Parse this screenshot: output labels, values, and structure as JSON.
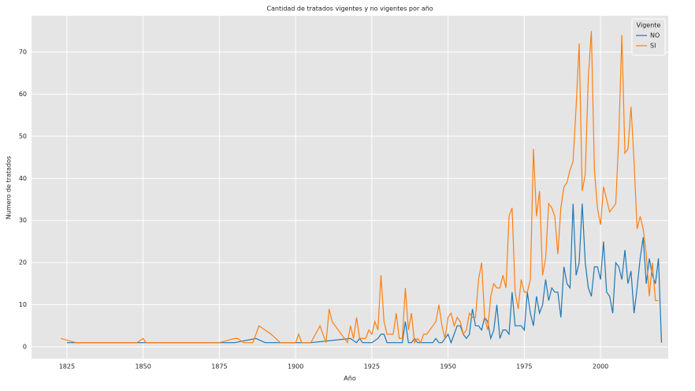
{
  "chart_data": {
    "type": "line",
    "title": "Cantidad de tratados vigentes y no vigentes por año",
    "x_label": "Año",
    "y_label": "Numero de tratados",
    "xlim": [
      1813.4,
      2022.2
    ],
    "ylim": [
      -2.8,
      78.6
    ],
    "xticks": [
      1825,
      1850,
      1875,
      1900,
      1925,
      1950,
      1975,
      2000
    ],
    "yticks": [
      0,
      10,
      20,
      30,
      40,
      50,
      60,
      70
    ],
    "grid": true,
    "legend_title": "Vigente",
    "legend_position": "upper-right",
    "series": [
      {
        "name": "NO",
        "color": "#1f77b4",
        "x": [
          1825,
          1830,
          1850,
          1880,
          1887,
          1890,
          1900,
          1905,
          1918,
          1920,
          1921,
          1922,
          1925,
          1927,
          1928,
          1929,
          1930,
          1935,
          1936,
          1937,
          1938,
          1939,
          1940,
          1945,
          1946,
          1947,
          1948,
          1950,
          1951,
          1952,
          1953,
          1954,
          1955,
          1956,
          1957,
          1958,
          1959,
          1960,
          1961,
          1962,
          1963,
          1964,
          1965,
          1966,
          1967,
          1968,
          1969,
          1970,
          1971,
          1972,
          1973,
          1974,
          1975,
          1976,
          1977,
          1978,
          1979,
          1980,
          1981,
          1982,
          1983,
          1984,
          1985,
          1986,
          1987,
          1988,
          1989,
          1990,
          1991,
          1992,
          1993,
          1994,
          1995,
          1996,
          1997,
          1998,
          1999,
          2000,
          2001,
          2002,
          2003,
          2004,
          2005,
          2006,
          2007,
          2008,
          2009,
          2010,
          2011,
          2012,
          2013,
          2014,
          2015,
          2016,
          2017,
          2018,
          2019,
          2020
        ],
        "values": [
          1,
          1,
          1,
          1,
          2,
          1,
          1,
          1,
          2,
          1,
          2,
          1,
          1,
          2,
          3,
          3,
          1,
          1,
          6,
          1,
          1,
          2,
          1,
          1,
          2,
          1,
          1,
          3,
          1,
          3,
          5,
          5,
          3,
          2,
          3,
          9,
          5,
          5,
          4,
          7,
          6,
          2,
          4,
          10,
          2,
          4,
          4,
          3,
          13,
          5,
          5,
          5,
          4,
          13,
          8,
          5,
          12,
          8,
          10,
          16,
          11,
          14,
          13,
          13,
          7,
          19,
          15,
          14,
          34,
          17,
          20,
          34,
          20,
          14,
          12,
          19,
          19,
          16,
          25,
          13,
          12,
          8,
          20,
          19,
          16,
          23,
          15,
          18,
          8,
          14,
          21,
          26,
          15,
          21,
          17,
          15,
          21,
          1
        ]
      },
      {
        "name": "SI",
        "color": "#ff7f0e",
        "x": [
          1823,
          1828,
          1848,
          1850,
          1851,
          1875,
          1880,
          1881,
          1883,
          1886,
          1888,
          1890,
          1892,
          1895,
          1900,
          1901,
          1902,
          1905,
          1908,
          1910,
          1911,
          1912,
          1915,
          1917,
          1918,
          1919,
          1920,
          1921,
          1923,
          1924,
          1925,
          1926,
          1927,
          1928,
          1929,
          1930,
          1932,
          1933,
          1934,
          1935,
          1936,
          1937,
          1938,
          1939,
          1940,
          1941,
          1942,
          1943,
          1945,
          1946,
          1947,
          1948,
          1949,
          1950,
          1951,
          1952,
          1953,
          1954,
          1955,
          1956,
          1957,
          1958,
          1959,
          1960,
          1961,
          1962,
          1963,
          1964,
          1965,
          1966,
          1967,
          1968,
          1969,
          1970,
          1971,
          1972,
          1973,
          1974,
          1975,
          1976,
          1977,
          1978,
          1979,
          1980,
          1981,
          1982,
          1983,
          1984,
          1985,
          1986,
          1987,
          1988,
          1989,
          1990,
          1991,
          1992,
          1993,
          1994,
          1995,
          1996,
          1997,
          1998,
          1999,
          2000,
          2001,
          2002,
          2003,
          2004,
          2005,
          2006,
          2007,
          2008,
          2009,
          2010,
          2011,
          2012,
          2013,
          2014,
          2015,
          2016,
          2017,
          2018,
          2019
        ],
        "values": [
          2,
          1,
          1,
          2,
          1,
          1,
          2,
          2,
          1,
          1,
          5,
          4,
          3,
          1,
          1,
          3,
          1,
          1,
          5,
          1,
          9,
          6,
          3,
          1,
          5,
          2,
          7,
          2,
          2,
          4,
          3,
          6,
          4,
          17,
          6,
          3,
          3,
          8,
          2,
          2,
          14,
          4,
          8,
          1,
          2,
          1,
          3,
          3,
          5,
          6,
          10,
          5,
          2,
          7,
          8,
          5,
          7,
          6,
          3,
          4,
          8,
          7,
          7,
          16,
          20,
          7,
          4,
          12,
          15,
          14,
          14,
          17,
          14,
          31,
          33,
          13,
          9,
          16,
          13,
          13,
          16,
          47,
          31,
          37,
          17,
          21,
          34,
          33,
          31,
          22,
          33,
          38,
          39,
          42,
          44,
          57,
          72,
          37,
          41,
          64,
          75,
          42,
          33,
          29,
          38,
          35,
          32,
          33,
          34,
          50,
          74,
          46,
          47,
          57,
          44,
          28,
          31,
          28,
          22,
          12,
          20,
          11,
          11
        ]
      }
    ]
  }
}
